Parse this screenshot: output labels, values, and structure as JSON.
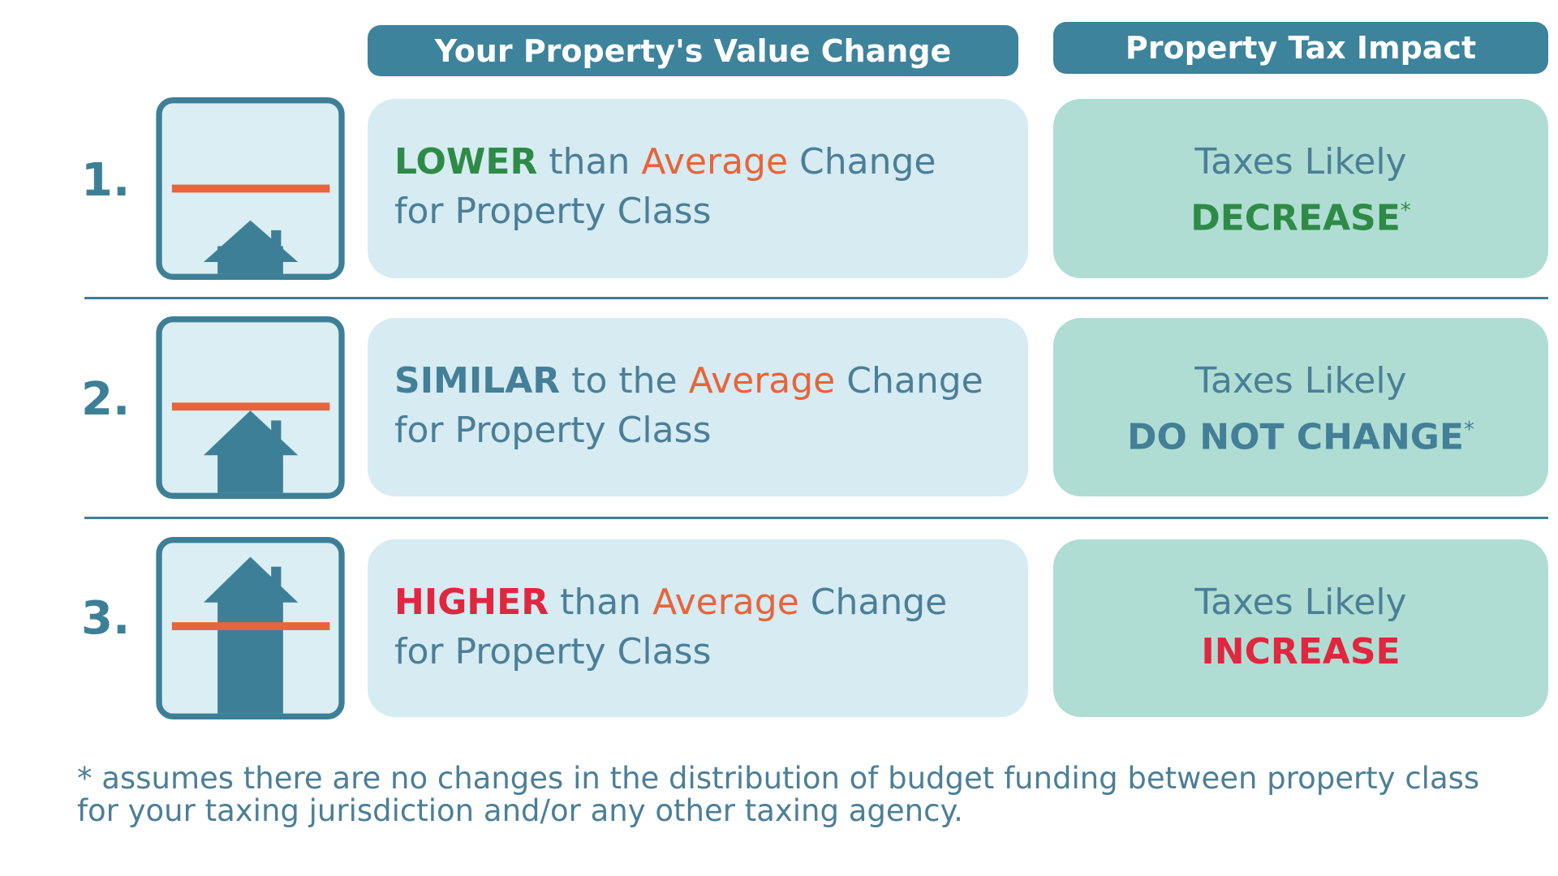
{
  "headers": [
    "Your Property's Value Change",
    "Property Tax Impact"
  ],
  "rows": [
    {
      "number": "1.",
      "change": {
        "level": "LOWER",
        "connector": "than",
        "average": "Average",
        "change": "Change",
        "line2": "for Property Class"
      },
      "impact": {
        "line1": "Taxes Likely",
        "line2": "DECREASE",
        "mark": "*"
      }
    },
    {
      "number": "2.",
      "change": {
        "level": "SIMILAR",
        "connector": "to the",
        "average": "Average",
        "change": "Change",
        "line2": "for Property Class"
      },
      "impact": {
        "line1": "Taxes Likely",
        "line2": "DO NOT CHANGE",
        "mark": "*"
      }
    },
    {
      "number": "3.",
      "change": {
        "level": "HIGHER",
        "connector": "than",
        "average": "Average",
        "change": "Change",
        "line2": "for Property Class"
      },
      "impact": {
        "line1": "Taxes Likely",
        "line2": "INCREASE"
      }
    }
  ],
  "footnote": [
    "* assumes there are no changes in the distribution of budget funding between property class",
    "for your taxing jurisdiction and/or any other taxing agency."
  ]
}
